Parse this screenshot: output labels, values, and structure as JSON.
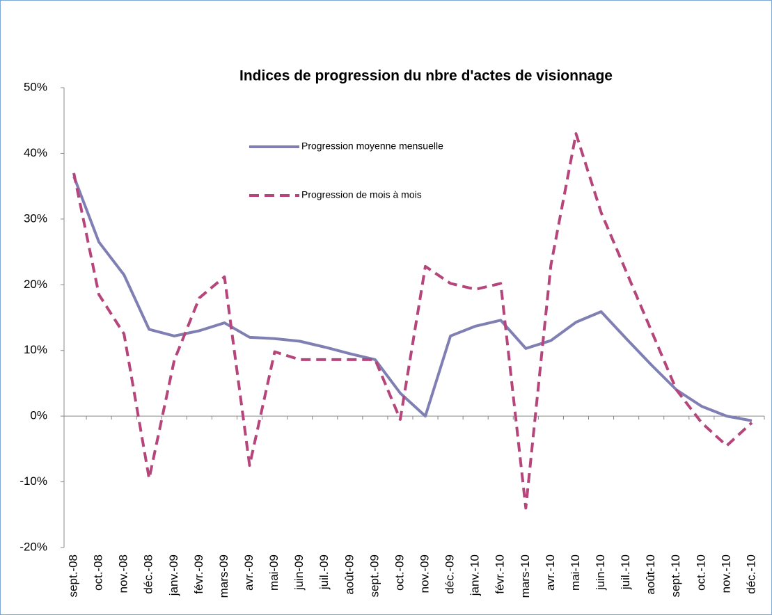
{
  "chart_data": {
    "type": "line",
    "title": "Indices de progression du nbre d'actes de visionnage",
    "categories": [
      "sept.-08",
      "oct.-08",
      "nov.-08",
      "déc.-08",
      "janv.-09",
      "févr.-09",
      "mars-09",
      "avr.-09",
      "mai-09",
      "juin-09",
      "juil.-09",
      "août-09",
      "sept.-09",
      "oct.-09",
      "nov.-09",
      "déc.-09",
      "janv.-10",
      "févr.-10",
      "mars-10",
      "avr.-10",
      "mai-10",
      "juin-10",
      "juil.-10",
      "août-10",
      "sept.-10",
      "oct.-10",
      "nov.-10",
      "déc.-10"
    ],
    "series": [
      {
        "name": "Progression moyenne mensuelle",
        "color": "#7f7fb3",
        "dash": false,
        "values": [
          36.5,
          26.5,
          21.5,
          13.2,
          12.2,
          13,
          14.2,
          12,
          11.8,
          11.4,
          10.5,
          9.5,
          8.6,
          3.5,
          0,
          12.2,
          13.7,
          14.6,
          10.3,
          11.5,
          14.3,
          15.9,
          11.8,
          7.8,
          4,
          1.5,
          0,
          -0.7
        ]
      },
      {
        "name": "Progression de mois à mois",
        "color": "#b5457a",
        "dash": true,
        "values": [
          37,
          18.5,
          12.5,
          -9.5,
          8.5,
          18,
          21.2,
          -7.5,
          9.8,
          8.6,
          8.6,
          8.6,
          8.6,
          -0.5,
          22.8,
          20.2,
          19.3,
          20.2,
          -14,
          23,
          43,
          31,
          22,
          13,
          4,
          -1,
          -4.5,
          -1
        ]
      }
    ],
    "ylim": [
      -20,
      50
    ],
    "yticks": [
      {
        "value": -20,
        "label": "-20%"
      },
      {
        "value": -10,
        "label": "-10%"
      },
      {
        "value": 0,
        "label": "0%"
      },
      {
        "value": 10,
        "label": "10%"
      },
      {
        "value": 20,
        "label": "20%"
      },
      {
        "value": 30,
        "label": "30%"
      },
      {
        "value": 40,
        "label": "40%"
      },
      {
        "value": 50,
        "label": "50%"
      }
    ]
  }
}
